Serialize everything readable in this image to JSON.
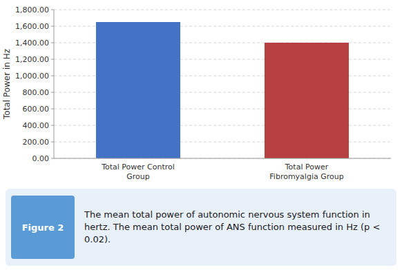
{
  "chart_data": {
    "type": "bar",
    "categories": [
      "Total Power Control\nGroup",
      "Total Power\nFibromyalgia Group"
    ],
    "values": [
      1650,
      1400
    ],
    "colors": [
      "#4472C4",
      "#B94040"
    ],
    "ylabel": "Total Power in Hz",
    "ylim": [
      0,
      1800
    ],
    "yticks": [
      {
        "value": 0,
        "label": "0.00"
      },
      {
        "value": 200,
        "label": "200.00"
      },
      {
        "value": 400,
        "label": "400.00"
      },
      {
        "value": 600,
        "label": "600.00"
      },
      {
        "value": 800,
        "label": "800.00"
      },
      {
        "value": 1000,
        "label": "1,000.00"
      },
      {
        "value": 1200,
        "label": "1,200.00"
      },
      {
        "value": 1400,
        "label": "1,400.00"
      },
      {
        "value": 1600,
        "label": "1,600.00"
      },
      {
        "value": 1800,
        "label": "1,800.00"
      }
    ],
    "grid": true,
    "annotations": [
      "Figure 2",
      "The mean total power of autonomic nervous system function in hertz. The mean total power of ANS function measured in Hz (p < 0.02)."
    ]
  }
}
